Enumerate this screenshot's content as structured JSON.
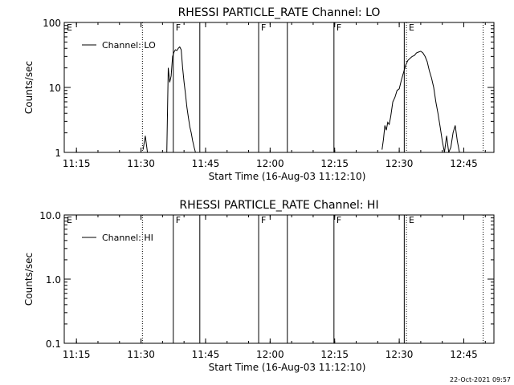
{
  "footer": {
    "timestamp": "22-Oct-2021 09:57"
  },
  "chart_data": [
    {
      "type": "line",
      "title": "RHESSI PARTICLE_RATE Channel: LO",
      "xlabel": "Start Time (16-Aug-03 11:12:10)",
      "ylabel": "Counts/sec",
      "yscale": "log",
      "ylim": [
        1,
        100
      ],
      "xlim": [
        "11:12:10",
        "12:52:00"
      ],
      "x_ticks": [
        "11:15",
        "11:30",
        "11:45",
        "12:00",
        "12:15",
        "12:30",
        "12:45"
      ],
      "y_ticks": [
        "1",
        "10",
        "100"
      ],
      "grid": false,
      "legend_position": "top-left",
      "series": [
        {
          "name": "Channel: LO",
          "segments": [
            {
              "x": [
                "11:30:30",
                "11:31:00",
                "11:31:30"
              ],
              "y": [
                1.1,
                1.8,
                1.0
              ]
            },
            {
              "x": [
                "11:36:00",
                "11:36:20",
                "11:36:40",
                "11:37:00",
                "11:37:20",
                "11:37:40",
                "11:38:00",
                "11:38:20",
                "11:38:40",
                "11:39:00",
                "11:39:20",
                "11:39:40",
                "11:40:00",
                "11:40:20",
                "11:40:40",
                "11:41:00",
                "11:41:20",
                "11:41:40",
                "11:42:00",
                "11:42:20",
                "11:42:40",
                "11:43:00",
                "11:43:20"
              ],
              "y": [
                1.0,
                20,
                12,
                15,
                30,
                35,
                38,
                37,
                40,
                42,
                38,
                20,
                12,
                8,
                5,
                3.5,
                2.5,
                2.0,
                1.5,
                1.2,
                1.0,
                1.0,
                1.0
              ]
            },
            {
              "x": [
                "12:26:00",
                "12:26:20",
                "12:26:40",
                "12:27:00",
                "12:27:20",
                "12:27:40",
                "12:28:00",
                "12:28:30",
                "12:29:00",
                "12:29:30",
                "12:30:00",
                "12:30:30",
                "12:31:00",
                "12:31:30",
                "12:32:00",
                "12:32:30",
                "12:33:00",
                "12:33:30",
                "12:34:00",
                "12:34:30",
                "12:35:00",
                "12:35:30",
                "12:36:00",
                "12:36:30",
                "12:37:00",
                "12:37:30",
                "12:38:00",
                "12:38:30",
                "12:39:00",
                "12:39:30",
                "12:40:00",
                "12:40:30",
                "12:41:00",
                "12:41:30",
                "12:42:00",
                "12:42:30",
                "12:43:00",
                "12:43:30",
                "12:44:00"
              ],
              "y": [
                1.1,
                1.6,
                2.6,
                2.2,
                2.9,
                2.7,
                3.5,
                6.0,
                7.0,
                9.0,
                9.5,
                13,
                17,
                22,
                26,
                28,
                30,
                31,
                34,
                35,
                36,
                34,
                30,
                25,
                18,
                14,
                10,
                6.0,
                4.0,
                2.5,
                1.5,
                1.0,
                1.8,
                1.0,
                1.2,
                2.0,
                2.6,
                1.5,
                1.0
              ]
            }
          ]
        }
      ],
      "annotations": [
        {
          "label": "E",
          "x": "11:12:10",
          "style": "dotted"
        },
        {
          "label": "",
          "x": "11:30:20",
          "style": "dotted"
        },
        {
          "label": "F",
          "x": "11:37:30",
          "style": "solid"
        },
        {
          "label": "",
          "x": "11:43:40",
          "style": "solid"
        },
        {
          "label": "F",
          "x": "11:57:20",
          "style": "solid"
        },
        {
          "label": "",
          "x": "12:04:00",
          "style": "solid"
        },
        {
          "label": "F",
          "x": "12:14:50",
          "style": "solid"
        },
        {
          "label": "",
          "x": "12:31:10",
          "style": "solid"
        },
        {
          "label": "E",
          "x": "12:31:40",
          "style": "dotted"
        },
        {
          "label": "",
          "x": "12:49:30",
          "style": "dotted"
        }
      ]
    },
    {
      "type": "line",
      "title": "RHESSI PARTICLE_RATE Channel: HI",
      "xlabel": "Start Time (16-Aug-03 11:12:10)",
      "ylabel": "Counts/sec",
      "yscale": "log",
      "ylim": [
        0.1,
        10
      ],
      "xlim": [
        "11:12:10",
        "12:52:00"
      ],
      "x_ticks": [
        "11:15",
        "11:30",
        "11:45",
        "12:00",
        "12:15",
        "12:30",
        "12:45"
      ],
      "y_ticks": [
        "0.1",
        "1.0",
        "10.0"
      ],
      "grid": false,
      "legend_position": "top-left",
      "series": [
        {
          "name": "Channel: HI",
          "segments": []
        }
      ],
      "annotations": [
        {
          "label": "E",
          "x": "11:12:10",
          "style": "dotted"
        },
        {
          "label": "",
          "x": "11:30:20",
          "style": "dotted"
        },
        {
          "label": "F",
          "x": "11:37:30",
          "style": "solid"
        },
        {
          "label": "",
          "x": "11:43:40",
          "style": "solid"
        },
        {
          "label": "F",
          "x": "11:57:20",
          "style": "solid"
        },
        {
          "label": "",
          "x": "12:04:00",
          "style": "solid"
        },
        {
          "label": "F",
          "x": "12:14:50",
          "style": "solid"
        },
        {
          "label": "",
          "x": "12:31:10",
          "style": "solid"
        },
        {
          "label": "E",
          "x": "12:31:40",
          "style": "dotted"
        },
        {
          "label": "",
          "x": "12:49:30",
          "style": "dotted"
        }
      ]
    }
  ]
}
